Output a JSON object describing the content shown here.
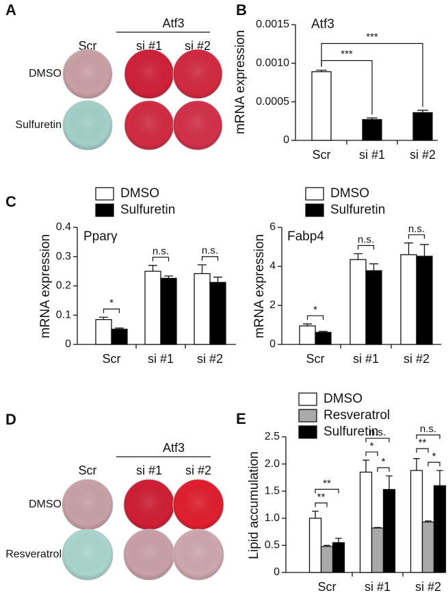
{
  "panel_labels": [
    "A",
    "B",
    "C",
    "D",
    "E"
  ],
  "plates": [
    {
      "group": "Atf3",
      "columns": [
        "Scr",
        "si #1",
        "si #2"
      ],
      "rows": [
        "DMSO",
        "Sulfuretin"
      ],
      "well_colors": [
        [
          "#c9a0a6",
          "#d0213a",
          "#d22a40"
        ],
        [
          "#a3d0c9",
          "#d22c43",
          "#d3314a"
        ]
      ]
    },
    {
      "group": "Atf3",
      "columns": [
        "Scr",
        "si #1",
        "si #2"
      ],
      "rows": [
        "DMSO",
        "Resveratrol"
      ],
      "well_colors": [
        [
          "#c8a1a8",
          "#cf1f35",
          "#e01f2f"
        ],
        [
          "#a9d5cd",
          "#c9a0a9",
          "#cea7af"
        ]
      ]
    }
  ],
  "chart_data": [
    {
      "type": "bar",
      "title": "Atf3",
      "y_label": "mRNA expression",
      "categories": [
        "Scr",
        "si #1",
        "si #2"
      ],
      "values": [
        0.00089,
        0.00027,
        0.00036
      ],
      "errors": [
        2e-05,
        2e-05,
        3e-05
      ],
      "colors": [
        "#ffffff",
        "#000000",
        "#000000"
      ],
      "ylim": [
        0,
        0.0015
      ],
      "yticks": [
        0,
        0.0005,
        {
          "value": 0.001,
          "label": "0.0010"
        },
        0.0015
      ],
      "annotations": [
        {
          "text": "***",
          "from": "Scr",
          "to": "si #1"
        },
        {
          "text": "***",
          "from": "Scr",
          "to": "si #2"
        }
      ]
    },
    {
      "type": "grouped_bar",
      "title": "Pparγ",
      "y_label": "mRNA expression",
      "categories": [
        "Scr",
        "si #1",
        "si #2"
      ],
      "series": [
        {
          "name": "DMSO",
          "color": "#ffffff",
          "values": [
            0.085,
            0.25,
            0.242
          ],
          "errors": [
            0.008,
            0.02,
            0.03
          ]
        },
        {
          "name": "Sulfuretin",
          "color": "#000000",
          "values": [
            0.052,
            0.226,
            0.212
          ],
          "errors": [
            0.004,
            0.008,
            0.018
          ]
        }
      ],
      "ylim": [
        0,
        0.4
      ],
      "yticks": [
        0,
        0.1,
        0.2,
        0.3,
        0.4
      ],
      "annotations": [
        {
          "text": "*",
          "category": "Scr",
          "between": [
            "DMSO",
            "Sulfuretin"
          ]
        },
        {
          "text": "n.s.",
          "category": "si #1",
          "between": [
            "DMSO",
            "Sulfuretin"
          ]
        },
        {
          "text": "n.s.",
          "category": "si #2",
          "between": [
            "DMSO",
            "Sulfuretin"
          ]
        }
      ]
    },
    {
      "type": "grouped_bar",
      "title": "Fabp4",
      "y_label": "mRNA expression",
      "categories": [
        "Scr",
        "si #1",
        "si #2"
      ],
      "series": [
        {
          "name": "DMSO",
          "color": "#ffffff",
          "values": [
            0.95,
            4.35,
            4.6
          ],
          "errors": [
            0.1,
            0.3,
            0.6
          ]
        },
        {
          "name": "Sulfuretin",
          "color": "#000000",
          "values": [
            0.62,
            3.78,
            4.52
          ],
          "errors": [
            0.05,
            0.35,
            0.6
          ]
        }
      ],
      "ylim": [
        0,
        6
      ],
      "yticks": [
        0,
        2,
        4,
        6
      ],
      "annotations": [
        {
          "text": "*",
          "category": "Scr",
          "between": [
            "DMSO",
            "Sulfuretin"
          ]
        },
        {
          "text": "n.s.",
          "category": "si #1",
          "between": [
            "DMSO",
            "Sulfuretin"
          ]
        },
        {
          "text": "n.s.",
          "category": "si #2",
          "between": [
            "DMSO",
            "Sulfuretin"
          ]
        }
      ]
    },
    {
      "type": "grouped_bar",
      "y_label": "Lipid accumulation",
      "categories": [
        "Scr",
        "si #1",
        "si #2"
      ],
      "series": [
        {
          "name": "DMSO",
          "color": "#ffffff",
          "values": [
            1.0,
            1.85,
            1.88
          ],
          "errors": [
            0.13,
            0.22,
            0.22
          ]
        },
        {
          "name": "Resveratrol",
          "color": "#a9a9a9",
          "values": [
            0.48,
            0.82,
            0.93
          ],
          "errors": [
            0.02,
            0.01,
            0.02
          ]
        },
        {
          "name": "Sulfuretin",
          "color": "#000000",
          "values": [
            0.55,
            1.53,
            1.6
          ],
          "errors": [
            0.08,
            0.25,
            0.28
          ]
        }
      ],
      "ylim": [
        0,
        2.5
      ],
      "yticks": [
        0,
        {
          "value": 0.5,
          "label": "0.5"
        },
        {
          "value": 1.0,
          "label": "1.0"
        },
        1.5,
        {
          "value": 2.0,
          "label": "2.0"
        },
        2.5
      ],
      "annotations": [
        {
          "text": "**",
          "category": "Scr",
          "between": [
            "DMSO",
            "Resveratrol"
          ]
        },
        {
          "text": "**",
          "category": "Scr",
          "between": [
            "DMSO",
            "Sulfuretin"
          ]
        },
        {
          "text": "*",
          "category": "si #1",
          "between": [
            "Resveratrol",
            "Sulfuretin"
          ]
        },
        {
          "text": "*",
          "category": "si #1",
          "between": [
            "DMSO",
            "Resveratrol"
          ]
        },
        {
          "text": "n.s.",
          "category": "si #1",
          "between": [
            "DMSO",
            "Sulfuretin"
          ]
        },
        {
          "text": "*",
          "category": "si #2",
          "between": [
            "Resveratrol",
            "Sulfuretin"
          ]
        },
        {
          "text": "**",
          "category": "si #2",
          "between": [
            "DMSO",
            "Resveratrol"
          ]
        },
        {
          "text": "n.s.",
          "category": "si #2",
          "between": [
            "DMSO",
            "Sulfuretin"
          ]
        }
      ]
    }
  ]
}
